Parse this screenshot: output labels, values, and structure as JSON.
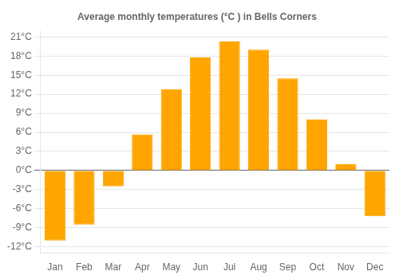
{
  "chart_data": {
    "type": "bar",
    "title": "Average monthly temperatures (°C ) in Bells Corners",
    "categories": [
      "Jan",
      "Feb",
      "Mar",
      "Apr",
      "May",
      "Jun",
      "Jul",
      "Aug",
      "Sep",
      "Oct",
      "Nov",
      "Dec"
    ],
    "values": [
      -11,
      -8.5,
      -2.5,
      5.7,
      12.8,
      17.8,
      20.3,
      19.0,
      14.5,
      8.0,
      1.0,
      -7.2
    ],
    "color": "#FFA500",
    "ylim": [
      -13,
      22
    ],
    "yticks": [
      {
        "value": -12,
        "label": "-12°C"
      },
      {
        "value": -9,
        "label": "-9°C"
      },
      {
        "value": -6,
        "label": "-6°C"
      },
      {
        "value": -3,
        "label": "-3°C"
      },
      {
        "value": 0,
        "label": "0°C"
      },
      {
        "value": 3,
        "label": "3°C"
      },
      {
        "value": 6,
        "label": "6°C"
      },
      {
        "value": 9,
        "label": "9°C"
      },
      {
        "value": 12,
        "label": "12°C"
      },
      {
        "value": 15,
        "label": "15°C"
      },
      {
        "value": 18,
        "label": "18°C"
      },
      {
        "value": 21,
        "label": "21°C"
      }
    ],
    "grid": true
  }
}
